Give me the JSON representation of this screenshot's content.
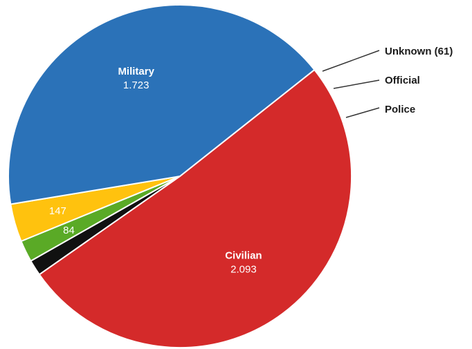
{
  "chart_data": {
    "type": "pie",
    "title": "",
    "slices": [
      {
        "name": "Civilian",
        "value": 2093,
        "value_label": "2.093",
        "color": "#d42a2a",
        "label_style": "inside-name-value"
      },
      {
        "name": "Unknown",
        "value": 61,
        "value_label": "",
        "color": "#111111",
        "label_style": "callout",
        "callout_text": "Unknown (61)"
      },
      {
        "name": "Official",
        "value": 84,
        "value_label": "84",
        "color": "#5aaa26",
        "label_style": "callout-and-inside-value",
        "callout_text": "Official"
      },
      {
        "name": "Police",
        "value": 147,
        "value_label": "147",
        "color": "#ffc20e",
        "label_style": "callout-and-inside-value",
        "callout_text": "Police"
      },
      {
        "name": "Military",
        "value": 1723,
        "value_label": "1.723",
        "color": "#2b72b8",
        "label_style": "inside-name-value"
      }
    ],
    "legend": "none"
  }
}
